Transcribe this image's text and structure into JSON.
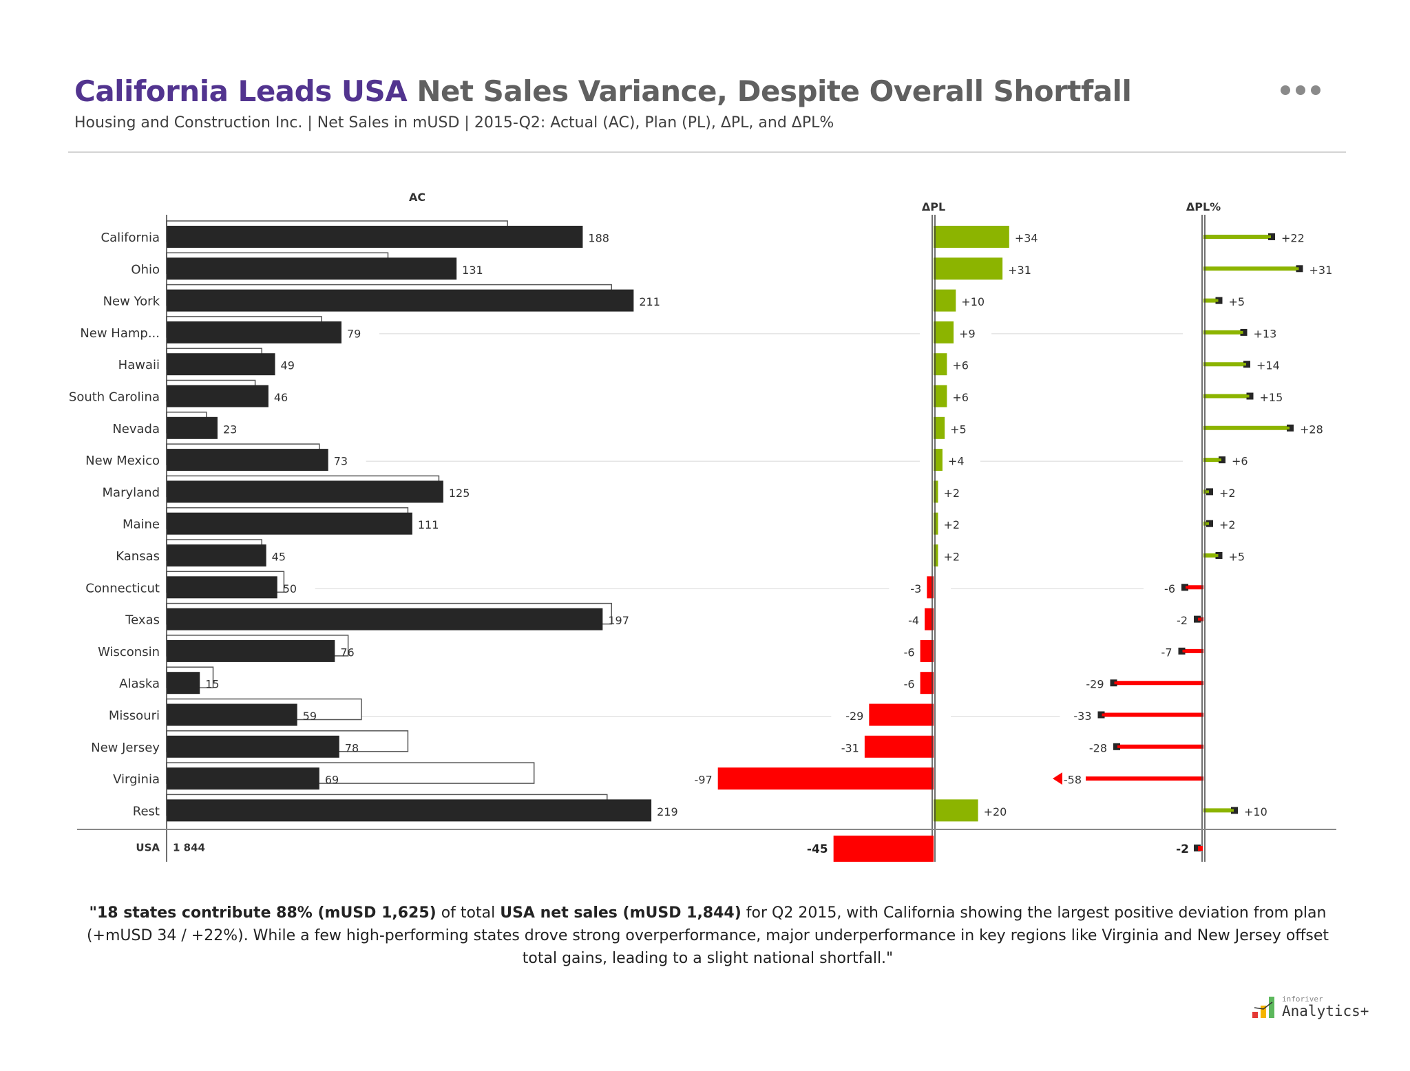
{
  "header": {
    "title_highlight": "California Leads USA",
    "title_rest": " Net Sales Variance, Despite Overall Shortfall",
    "subtitle": "Housing and Construction Inc. | Net Sales in mUSD | 2015-Q2: Actual (AC), Plan (PL), ΔPL, and ΔPL%",
    "menu_icon": "more-horizontal-icon"
  },
  "chart_data": {
    "type": "bar",
    "title": "California Leads USA Net Sales Variance, Despite Overall Shortfall",
    "columns": {
      "ac": "AC",
      "dpl": "ΔPL",
      "dplp": "ΔPL%"
    },
    "categories": [
      "California",
      "Ohio",
      "New York",
      "New Hamp...",
      "Hawaii",
      "South Carolina",
      "Nevada",
      "New Mexico",
      "Maryland",
      "Maine",
      "Kansas",
      "Connecticut",
      "Texas",
      "Wisconsin",
      "Alaska",
      "Missouri",
      "New Jersey",
      "Virginia",
      "Rest"
    ],
    "series": [
      {
        "name": "AC",
        "values": [
          188,
          131,
          211,
          79,
          49,
          46,
          23,
          73,
          125,
          111,
          45,
          50,
          197,
          76,
          15,
          59,
          78,
          69,
          219
        ]
      },
      {
        "name": "PL",
        "values": [
          154,
          100,
          201,
          70,
          43,
          40,
          18,
          69,
          123,
          109,
          43,
          53,
          201,
          82,
          21,
          88,
          109,
          166,
          199
        ]
      },
      {
        "name": "ΔPL",
        "values": [
          34,
          31,
          10,
          9,
          6,
          6,
          5,
          4,
          2,
          2,
          2,
          -3,
          -4,
          -6,
          -6,
          -29,
          -31,
          -97,
          20
        ]
      },
      {
        "name": "ΔPL%",
        "values": [
          22,
          31,
          5,
          13,
          14,
          15,
          28,
          6,
          2,
          2,
          5,
          -6,
          -2,
          -7,
          -29,
          -33,
          -28,
          -58,
          10
        ]
      }
    ],
    "guide_rows": [
      "New Hamp...",
      "New Mexico",
      "Connecticut",
      "Missouri"
    ],
    "total": {
      "label": "USA",
      "ac_label": "1 844",
      "ac": 1844,
      "dpl": -45,
      "dplp": -2
    },
    "dplp_clip": -38,
    "colors": {
      "ac": "#262626",
      "positive": "#8cb400",
      "negative": "#ff0000",
      "axis": "#404040"
    }
  },
  "footnote": {
    "bold1": "\"18 states contribute 88% (mUSD 1,625)",
    "t1": " of total ",
    "bold2": "USA net sales (mUSD 1,844)",
    "t2": " for Q2 2015, with California showing the largest positive deviation from plan (+mUSD 34 / +22%). While a few high-performing states drove strong overperformance, major underperformance in key regions like Virginia and New Jersey offset total gains, leading to a slight national shortfall.\""
  },
  "logo": {
    "small": "inforiver",
    "big": "Analytics+"
  }
}
